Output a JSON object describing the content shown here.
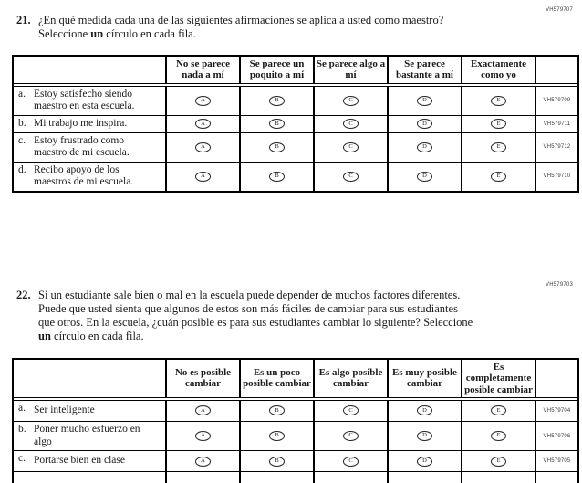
{
  "q21": {
    "number": "21.",
    "text_before_bold": "¿En qué medida cada una de las siguientes afirmaciones se aplica a usted como maestro? Seleccione ",
    "bold_word": "un",
    "text_after_bold": " círculo en cada fila.",
    "code": "VH579707",
    "columns": [
      "No se parece nada a mí",
      "Se parece un poquito a mí",
      "Se parece algo a mí",
      "Se parece bastante a mí",
      "Exactamente como yo"
    ],
    "option_letters": [
      "A",
      "B",
      "C",
      "D",
      "E"
    ],
    "rows": [
      {
        "letter": "a.",
        "text": "Estoy satisfecho siendo maestro en esta escuela.",
        "code": "VH579709"
      },
      {
        "letter": "b.",
        "text": "Mi trabajo me inspira.",
        "code": "VH579711"
      },
      {
        "letter": "c.",
        "text": "Estoy frustrado como maestro de mi escuela.",
        "code": "VH579712"
      },
      {
        "letter": "d.",
        "text": "Recibo apoyo de los maestros de mi escuela.",
        "code": "VH579710"
      }
    ]
  },
  "q22": {
    "number": "22.",
    "text_before_bold": "Si un estudiante sale bien o mal en la escuela puede depender de muchos factores diferentes. Puede que usted sienta que algunos de estos son más fáciles de cambiar para sus estudiantes que otros. En la escuela, ¿cuán posible es para sus estudiantes cambiar lo siguiente? Seleccione ",
    "bold_word": "un",
    "text_after_bold": " círculo en cada fila.",
    "code": "VH579703",
    "columns": [
      "No es posible cambiar",
      "Es un poco posible cambiar",
      "Es algo posible cambiar",
      "Es muy posible cambiar",
      "Es completamente posible cambiar"
    ],
    "option_letters": [
      "A",
      "B",
      "C",
      "D",
      "E"
    ],
    "rows": [
      {
        "letter": "a.",
        "text": "Ser inteligente",
        "code": "VH579704"
      },
      {
        "letter": "b.",
        "text": "Poner mucho esfuerzo en algo",
        "code": "VH579706"
      },
      {
        "letter": "c.",
        "text": "Portarse bien en clase",
        "code": "VH579705"
      }
    ]
  }
}
